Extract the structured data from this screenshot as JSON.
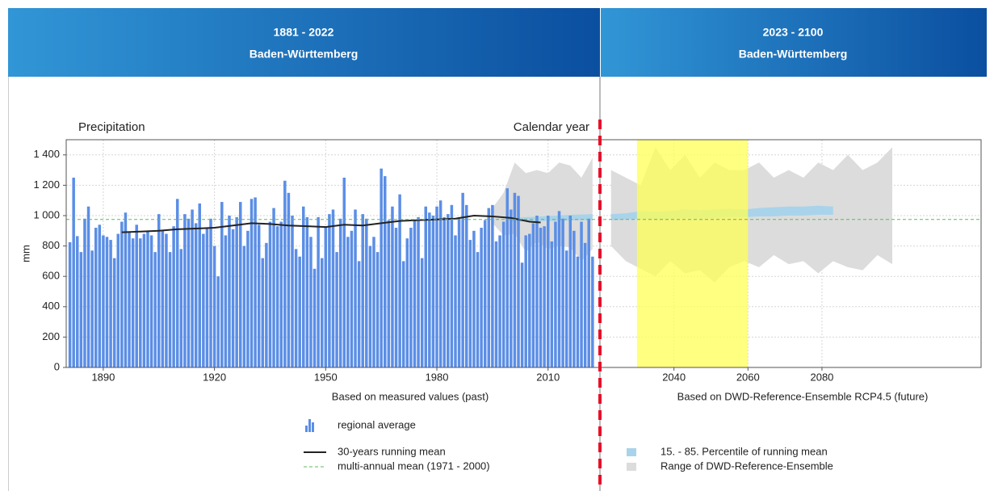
{
  "header": {
    "left": {
      "period": "1881 - 2022",
      "region": "Baden-Württemberg"
    },
    "right": {
      "period": "2023 - 2100",
      "region": "Baden-Württemberg"
    }
  },
  "chart_data": [
    {
      "type": "bar",
      "title": "Precipitation",
      "annotation": "Calendar year",
      "ylabel": "mm",
      "xlabel": "Based on measured values (past)",
      "xlim": [
        1880,
        2024
      ],
      "xticks": [
        1890,
        1920,
        1950,
        1980,
        2010
      ],
      "ylim": [
        0,
        1500
      ],
      "yticks": [
        0,
        200,
        400,
        600,
        800,
        {
          "value": 1000,
          "label": "1 000"
        },
        {
          "value": 1200,
          "label": "1 200"
        },
        {
          "value": 1400,
          "label": "1 400"
        }
      ],
      "grid": true,
      "series": [
        {
          "name": "regional average",
          "type": "bar",
          "color": "#5b8ee6",
          "x": [
            1881,
            1882,
            1883,
            1884,
            1885,
            1886,
            1887,
            1888,
            1889,
            1890,
            1891,
            1892,
            1893,
            1894,
            1895,
            1896,
            1897,
            1898,
            1899,
            1900,
            1901,
            1902,
            1903,
            1904,
            1905,
            1906,
            1907,
            1908,
            1909,
            1910,
            1911,
            1912,
            1913,
            1914,
            1915,
            1916,
            1917,
            1918,
            1919,
            1920,
            1921,
            1922,
            1923,
            1924,
            1925,
            1926,
            1927,
            1928,
            1929,
            1930,
            1931,
            1932,
            1933,
            1934,
            1935,
            1936,
            1937,
            1938,
            1939,
            1940,
            1941,
            1942,
            1943,
            1944,
            1945,
            1946,
            1947,
            1948,
            1949,
            1950,
            1951,
            1952,
            1953,
            1954,
            1955,
            1956,
            1957,
            1958,
            1959,
            1960,
            1961,
            1962,
            1963,
            1964,
            1965,
            1966,
            1967,
            1968,
            1969,
            1970,
            1971,
            1972,
            1973,
            1974,
            1975,
            1976,
            1977,
            1978,
            1979,
            1980,
            1981,
            1982,
            1983,
            1984,
            1985,
            1986,
            1987,
            1988,
            1989,
            1990,
            1991,
            1992,
            1993,
            1994,
            1995,
            1996,
            1997,
            1998,
            1999,
            2000,
            2001,
            2002,
            2003,
            2004,
            2005,
            2006,
            2007,
            2008,
            2009,
            2010,
            2011,
            2012,
            2013,
            2014,
            2015,
            2016,
            2017,
            2018,
            2019,
            2020,
            2021,
            2022
          ],
          "values": [
            825,
            1250,
            865,
            760,
            980,
            1060,
            770,
            920,
            940,
            870,
            860,
            840,
            720,
            880,
            960,
            1020,
            890,
            850,
            940,
            850,
            880,
            900,
            870,
            760,
            1010,
            900,
            880,
            760,
            930,
            1110,
            780,
            1010,
            980,
            1040,
            950,
            1080,
            880,
            920,
            980,
            800,
            600,
            1090,
            870,
            1000,
            910,
            990,
            1090,
            800,
            900,
            1110,
            1120,
            940,
            720,
            820,
            960,
            1050,
            930,
            960,
            1230,
            1150,
            1000,
            780,
            730,
            1060,
            990,
            860,
            650,
            990,
            720,
            930,
            1010,
            1040,
            760,
            980,
            1250,
            860,
            900,
            1040,
            700,
            1010,
            980,
            800,
            860,
            760,
            1310,
            1260,
            970,
            1060,
            920,
            1140,
            700,
            850,
            920,
            970,
            990,
            720,
            1060,
            1020,
            1000,
            1060,
            1100,
            990,
            1010,
            1070,
            870,
            990,
            1150,
            1070,
            840,
            900,
            760,
            920,
            970,
            1050,
            1070,
            830,
            870,
            960,
            1180,
            1040,
            1150,
            1130,
            690,
            870,
            880,
            950,
            1000,
            920,
            930,
            1000,
            830,
            960,
            1030,
            980,
            770,
            1000,
            900,
            730,
            960,
            820,
            980,
            730
          ]
        },
        {
          "type": "area",
          "color": "#dcdcdc",
          "x": [
            1995,
            1998,
            2001,
            2004,
            2007,
            2010,
            2013,
            2016,
            2019,
            2022
          ],
          "low": [
            950,
            870,
            880,
            760,
            830,
            780,
            800,
            790,
            700,
            780
          ],
          "high": [
            1050,
            1150,
            1350,
            1280,
            1300,
            1280,
            1350,
            1330,
            1250,
            1380
          ]
        },
        {
          "type": "area",
          "color": "#a9d3ea",
          "x": [
            2000,
            2004,
            2008,
            2012,
            2016,
            2020,
            2022
          ],
          "low": [
            960,
            962,
            965,
            965,
            968,
            970,
            970
          ],
          "high": [
            985,
            990,
            995,
            1000,
            1005,
            1008,
            1010
          ]
        },
        {
          "name": "30-years running mean",
          "type": "line",
          "color": "#222222",
          "x": [
            1895,
            1900,
            1905,
            1910,
            1915,
            1920,
            1925,
            1930,
            1935,
            1940,
            1945,
            1950,
            1955,
            1960,
            1965,
            1970,
            1975,
            1980,
            1985,
            1990,
            1995,
            2000,
            2005,
            2008
          ],
          "values": [
            890,
            895,
            900,
            910,
            915,
            920,
            935,
            950,
            945,
            935,
            930,
            925,
            940,
            935,
            950,
            965,
            970,
            975,
            980,
            1000,
            995,
            985,
            960,
            955
          ]
        }
      ],
      "mean_line": {
        "name": "multi-annual mean (1971 - 2000)",
        "value": 975,
        "color": "#5cb85c"
      }
    },
    {
      "type": "area",
      "xlabel": "Based on DWD-Reference-Ensemble RCP4.5 (future)",
      "xlim": [
        2020,
        2123
      ],
      "xticks": [
        2040,
        2060,
        2080
      ],
      "ylim": [
        0,
        1500
      ],
      "yticks": [
        0,
        200,
        400,
        600,
        800,
        1000,
        1200,
        1400
      ],
      "grid": true,
      "highlight": {
        "x": [
          2030,
          2060
        ],
        "color": "#ffff55"
      },
      "series": [
        {
          "name": "Range of DWD-Reference-Ensemble",
          "type": "area",
          "color": "#dcdcdc",
          "x": [
            2023,
            2027,
            2031,
            2035,
            2039,
            2043,
            2047,
            2051,
            2055,
            2059,
            2063,
            2067,
            2071,
            2075,
            2079,
            2083,
            2087,
            2091,
            2095,
            2099
          ],
          "low": [
            800,
            700,
            650,
            600,
            700,
            620,
            640,
            560,
            660,
            700,
            660,
            740,
            680,
            700,
            620,
            700,
            660,
            640,
            740,
            680
          ],
          "high": [
            1300,
            1250,
            1200,
            1450,
            1300,
            1400,
            1250,
            1350,
            1300,
            1300,
            1350,
            1250,
            1300,
            1250,
            1350,
            1300,
            1400,
            1300,
            1350,
            1450
          ]
        },
        {
          "name": "15. - 85. Percentile of running mean",
          "type": "area",
          "color": "#a9d3ea",
          "x": [
            2023,
            2027,
            2031,
            2035,
            2039,
            2043,
            2047,
            2051,
            2055,
            2059,
            2063,
            2067,
            2071,
            2075,
            2079,
            2083
          ],
          "low": [
            970,
            975,
            980,
            975,
            980,
            985,
            980,
            985,
            990,
            990,
            995,
            995,
            1000,
            1000,
            1005,
            1005
          ],
          "high": [
            1010,
            1015,
            1030,
            1025,
            1030,
            1040,
            1035,
            1040,
            1045,
            1040,
            1050,
            1055,
            1060,
            1060,
            1065,
            1060
          ]
        }
      ]
    }
  ]
}
